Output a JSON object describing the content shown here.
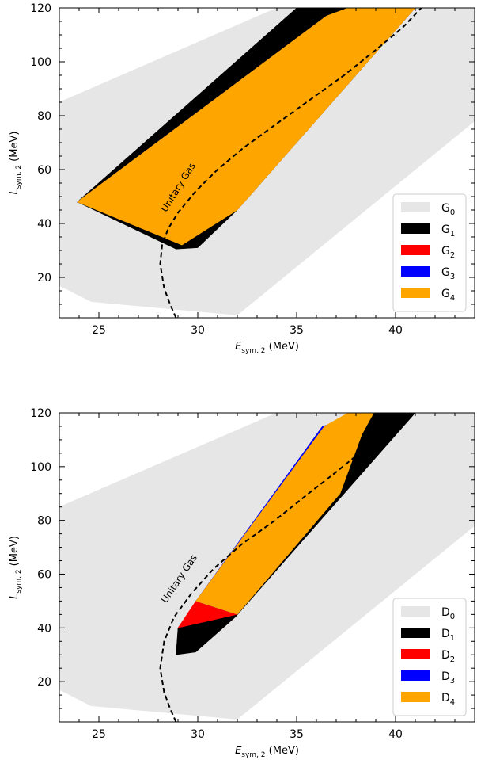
{
  "chart_data": [
    {
      "type": "area",
      "xlabel": {
        "main": "E",
        "sub": "sym, 2",
        "unit": " (MeV)"
      },
      "ylabel": {
        "main": "L",
        "sub": "sym, 2",
        "unit": " (MeV)"
      },
      "xlim": [
        23,
        44
      ],
      "ylim": [
        5,
        120
      ],
      "xticks": [
        25,
        30,
        35,
        40
      ],
      "yticks": [
        20,
        40,
        60,
        80,
        100,
        120
      ],
      "annotation": "Unitary Gas",
      "annotation_at": [
        28.4,
        44
      ],
      "annotation_angle": -58,
      "legend_position": "lower right",
      "series": [
        {
          "name": "G",
          "sub": "0",
          "color": "#e6e6e6",
          "polygon": [
            [
              23,
              85
            ],
            [
              34,
              120
            ],
            [
              44,
              120
            ],
            [
              44,
              78
            ],
            [
              32,
              6
            ],
            [
              24.6,
              11
            ],
            [
              23,
              17
            ]
          ]
        },
        {
          "name": "G",
          "sub": "1",
          "color": "#000000",
          "polygon": [
            [
              23.9,
              48
            ],
            [
              35,
              120
            ],
            [
              41,
              120
            ],
            [
              32,
              45
            ],
            [
              30,
              31
            ],
            [
              28.9,
              30.5
            ]
          ]
        },
        {
          "name": "G",
          "sub": "2",
          "color": "#ff0000",
          "polygon": []
        },
        {
          "name": "G",
          "sub": "3",
          "color": "#0000ff",
          "polygon": [
            [
              23.9,
              48
            ],
            [
              36.5,
              117
            ],
            [
              36.5,
              116.4
            ],
            [
              23.9,
              47.8
            ]
          ]
        },
        {
          "name": "G",
          "sub": "4",
          "color": "#ffa500",
          "polygon": [
            [
              23.9,
              48
            ],
            [
              36.5,
              117
            ],
            [
              37.6,
              120
            ],
            [
              41,
              120
            ],
            [
              32,
              45
            ],
            [
              29.2,
              32
            ]
          ]
        }
      ],
      "unitary_gas_curve": [
        [
          28.9,
          5
        ],
        [
          28.6,
          10
        ],
        [
          28.3,
          16
        ],
        [
          28.1,
          25
        ],
        [
          28.2,
          32
        ],
        [
          28.5,
          38
        ],
        [
          29.0,
          44
        ],
        [
          29.9,
          52
        ],
        [
          31.0,
          60
        ],
        [
          32.3,
          68
        ],
        [
          33.8,
          76
        ],
        [
          35.5,
          85
        ],
        [
          37.4,
          95
        ],
        [
          39.1,
          105
        ],
        [
          40.4,
          113
        ],
        [
          41.3,
          120
        ]
      ]
    },
    {
      "type": "area",
      "xlabel": {
        "main": "E",
        "sub": "sym, 2",
        "unit": " (MeV)"
      },
      "ylabel": {
        "main": "L",
        "sub": "sym, 2",
        "unit": " (MeV)"
      },
      "xlim": [
        23,
        44
      ],
      "ylim": [
        5,
        120
      ],
      "xticks": [
        25,
        30,
        35,
        40
      ],
      "yticks": [
        20,
        40,
        60,
        80,
        100,
        120
      ],
      "annotation": "Unitary Gas",
      "annotation_at": [
        28.4,
        49
      ],
      "annotation_angle": -56,
      "legend_position": "lower right",
      "series": [
        {
          "name": "D",
          "sub": "0",
          "color": "#e6e6e6",
          "polygon": [
            [
              23,
              85
            ],
            [
              34,
              120
            ],
            [
              44,
              120
            ],
            [
              44,
              78
            ],
            [
              32,
              6
            ],
            [
              24.6,
              11
            ],
            [
              23,
              17
            ]
          ]
        },
        {
          "name": "D",
          "sub": "1",
          "color": "#000000",
          "polygon": [
            [
              29,
              40
            ],
            [
              36.3,
              115
            ],
            [
              39,
              120
            ],
            [
              41,
              120
            ],
            [
              31.9,
              44
            ],
            [
              29.9,
              31
            ],
            [
              28.9,
              30
            ]
          ]
        },
        {
          "name": "D",
          "sub": "2",
          "color": "#ff0000",
          "polygon": [
            [
              29,
              40
            ],
            [
              29.9,
              50
            ],
            [
              32,
              45
            ]
          ]
        },
        {
          "name": "D",
          "sub": "3",
          "color": "#0000ff",
          "polygon": [
            [
              29.9,
              50
            ],
            [
              36.3,
              115
            ],
            [
              38.6,
              120
            ],
            [
              38.2,
              110
            ],
            [
              37.3,
              98
            ],
            [
              32,
              45
            ]
          ]
        },
        {
          "name": "D",
          "sub": "4",
          "color": "#ffa500",
          "polygon": [
            [
              29.9,
              50
            ],
            [
              36.4,
              115
            ],
            [
              37.6,
              120
            ],
            [
              38.9,
              120
            ],
            [
              38.3,
              112
            ],
            [
              37.2,
              90
            ],
            [
              32,
              45
            ]
          ]
        }
      ],
      "unitary_gas_curve": [
        [
          28.9,
          5
        ],
        [
          28.6,
          10
        ],
        [
          28.3,
          16
        ],
        [
          28.1,
          25
        ],
        [
          28.3,
          35
        ],
        [
          28.8,
          44
        ],
        [
          29.7,
          53
        ],
        [
          30.8,
          62
        ],
        [
          32.2,
          71
        ],
        [
          33.9,
          80
        ],
        [
          35.6,
          90
        ],
        [
          37.0,
          98
        ],
        [
          38.0,
          104
        ],
        [
          38.8,
          110
        ]
      ]
    }
  ]
}
